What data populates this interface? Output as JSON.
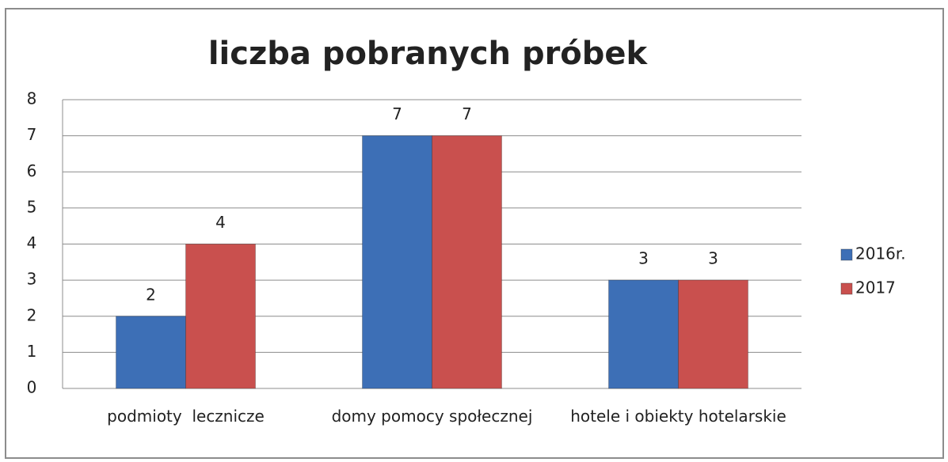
{
  "chart_data": {
    "type": "bar",
    "title": "liczba pobranych próbek",
    "categories": [
      "podmioty  lecznicze",
      "domy pomocy społecznej",
      "hotele i obiekty hotelarskie"
    ],
    "series": [
      {
        "name": "2016r.",
        "color": "#3d6fb6",
        "values": [
          2,
          7,
          3
        ]
      },
      {
        "name": "2017",
        "color": "#c9504e",
        "values": [
          4,
          7,
          3
        ]
      }
    ],
    "ylim": [
      0,
      8
    ],
    "yticks": [
      0,
      1,
      2,
      3,
      4,
      5,
      6,
      7,
      8
    ],
    "grid": true,
    "legend": "right"
  }
}
